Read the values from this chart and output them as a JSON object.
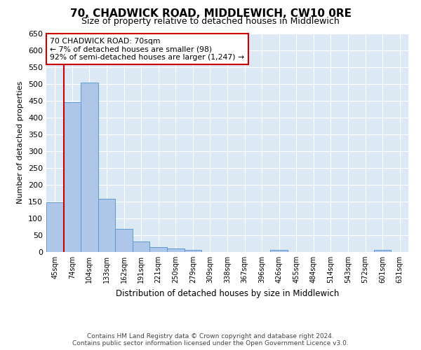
{
  "title": "70, CHADWICK ROAD, MIDDLEWICH, CW10 0RE",
  "subtitle": "Size of property relative to detached houses in Middlewich",
  "xlabel": "Distribution of detached houses by size in Middlewich",
  "ylabel": "Number of detached properties",
  "footer_line1": "Contains HM Land Registry data © Crown copyright and database right 2024.",
  "footer_line2": "Contains public sector information licensed under the Open Government Licence v3.0.",
  "categories": [
    "45sqm",
    "74sqm",
    "104sqm",
    "133sqm",
    "162sqm",
    "191sqm",
    "221sqm",
    "250sqm",
    "279sqm",
    "309sqm",
    "338sqm",
    "367sqm",
    "396sqm",
    "426sqm",
    "455sqm",
    "484sqm",
    "514sqm",
    "543sqm",
    "572sqm",
    "601sqm",
    "631sqm"
  ],
  "values": [
    148,
    445,
    504,
    159,
    68,
    31,
    14,
    10,
    6,
    0,
    0,
    0,
    0,
    7,
    0,
    0,
    0,
    0,
    0,
    7,
    0
  ],
  "bar_color": "#aec6e8",
  "bar_edge_color": "#5b9bd5",
  "highlight_line_color": "#cc0000",
  "annotation_text_line1": "70 CHADWICK ROAD: 70sqm",
  "annotation_text_line2": "← 7% of detached houses are smaller (98)",
  "annotation_text_line3": "92% of semi-detached houses are larger (1,247) →",
  "annotation_box_facecolor": "#ffffff",
  "annotation_box_edgecolor": "#cc0000",
  "ylim": [
    0,
    650
  ],
  "yticks": [
    0,
    50,
    100,
    150,
    200,
    250,
    300,
    350,
    400,
    450,
    500,
    550,
    600,
    650
  ],
  "figure_facecolor": "#ffffff",
  "plot_bg_color": "#dce9f5",
  "grid_color": "#ffffff",
  "title_fontsize": 11,
  "subtitle_fontsize": 9,
  "ylabel_fontsize": 8,
  "xlabel_fontsize": 8.5,
  "tick_fontsize": 7,
  "footer_fontsize": 6.5
}
